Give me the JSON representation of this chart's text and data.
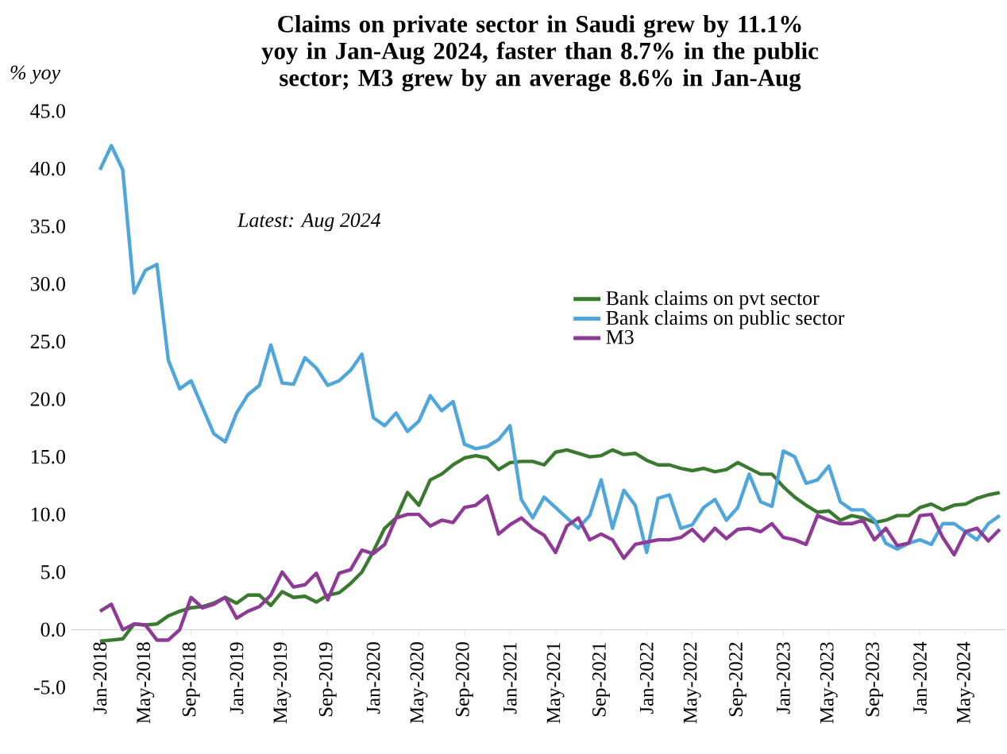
{
  "chart_data": {
    "type": "line",
    "title": "Claims on private sector in Saudi grew by 11.1% yoy in Jan-Aug 2024, faster than 8.7% in the public sector; M3 grew by an average 8.6% in Jan-Aug",
    "ylabel": "% yoy",
    "annotations": [
      "Latest: Aug 2024"
    ],
    "categories": [
      "Jan-2018",
      null,
      null,
      null,
      "May-2018",
      null,
      null,
      null,
      "Sep-2018",
      null,
      null,
      null,
      "Jan-2019",
      null,
      null,
      null,
      "May-2019",
      null,
      null,
      null,
      "Sep-2019",
      null,
      null,
      null,
      "Jan-2020",
      null,
      null,
      null,
      "May-2020",
      null,
      null,
      null,
      "Sep-2020",
      null,
      null,
      null,
      "Jan-2021",
      null,
      null,
      null,
      "May-2021",
      null,
      null,
      null,
      "Sep-2021",
      null,
      null,
      null,
      "Jan-2022",
      null,
      null,
      null,
      "May-2022",
      null,
      null,
      null,
      "Sep-2022",
      null,
      null,
      null,
      "Jan-2023",
      null,
      null,
      null,
      "May-2023",
      null,
      null,
      null,
      "Sep-2023",
      null,
      null,
      null,
      "Jan-2024",
      null,
      null,
      null,
      "May-2024",
      null,
      null,
      null
    ],
    "ylim": [
      -5,
      45
    ],
    "yticks": [
      {
        "value": -5,
        "label": "-5.0"
      },
      {
        "value": 0,
        "label": "0.0"
      },
      {
        "value": 5,
        "label": "5.0"
      },
      {
        "value": 10,
        "label": "10.0"
      },
      {
        "value": 15,
        "label": "15.0"
      },
      {
        "value": 20,
        "label": "20.0"
      },
      {
        "value": 25,
        "label": "25.0"
      },
      {
        "value": 30,
        "label": "30.0"
      },
      {
        "value": 35,
        "label": "35.0"
      },
      {
        "value": 40,
        "label": "40.0"
      },
      {
        "value": 45,
        "label": "45.0"
      }
    ],
    "legend": "right",
    "series": [
      {
        "name": "Bank claims on pvt sector",
        "color": "#3a7a2e",
        "values": [
          -1.0,
          -0.9,
          -0.8,
          0.5,
          0.4,
          0.5,
          1.2,
          1.6,
          1.9,
          2.0,
          2.3,
          2.8,
          2.3,
          3.0,
          3.0,
          2.1,
          3.3,
          2.8,
          2.9,
          2.4,
          3.0,
          3.2,
          4.0,
          5.0,
          6.8,
          8.8,
          9.7,
          11.9,
          10.8,
          13.0,
          13.5,
          14.3,
          14.9,
          15.1,
          14.9,
          13.9,
          14.5,
          14.6,
          14.6,
          14.3,
          15.4,
          15.6,
          15.3,
          15.0,
          15.1,
          15.6,
          15.2,
          15.3,
          14.7,
          14.3,
          14.3,
          14.0,
          13.8,
          14.0,
          13.7,
          13.9,
          14.5,
          14.0,
          13.5,
          13.5,
          12.4,
          11.5,
          10.8,
          10.2,
          10.3,
          9.5,
          9.9,
          9.7,
          9.3,
          9.5,
          9.9,
          9.9,
          10.6,
          10.9,
          10.4,
          10.8,
          10.9,
          11.4,
          11.7,
          11.9
        ]
      },
      {
        "name": "Bank claims on public sector",
        "color": "#4ea6dc",
        "values": [
          39.9,
          42.0,
          39.9,
          29.2,
          31.2,
          31.7,
          23.4,
          20.9,
          21.6,
          19.3,
          17.0,
          16.3,
          18.8,
          20.4,
          21.2,
          24.7,
          21.4,
          21.3,
          23.6,
          22.7,
          21.2,
          21.6,
          22.5,
          23.9,
          18.4,
          17.7,
          18.8,
          17.2,
          18.1,
          20.3,
          19.0,
          19.8,
          16.1,
          15.7,
          15.9,
          16.5,
          17.7,
          11.3,
          9.7,
          11.5,
          10.6,
          9.7,
          8.8,
          9.9,
          13.0,
          8.8,
          12.1,
          10.8,
          6.7,
          11.4,
          11.7,
          8.8,
          9.1,
          10.6,
          11.3,
          9.5,
          10.6,
          13.5,
          11.1,
          10.7,
          15.5,
          15.0,
          12.7,
          13.0,
          14.2,
          11.1,
          10.4,
          10.4,
          9.5,
          7.5,
          7.0,
          7.5,
          7.8,
          7.4,
          9.2,
          9.2,
          8.5,
          7.8,
          9.2,
          9.9
        ]
      },
      {
        "name": "M3",
        "color": "#8e3a96",
        "values": [
          1.6,
          2.2,
          0.0,
          0.5,
          0.4,
          -0.9,
          -0.9,
          0.0,
          2.8,
          1.9,
          2.2,
          2.8,
          1.0,
          1.6,
          2.0,
          3.0,
          5.0,
          3.7,
          3.9,
          4.9,
          2.6,
          4.9,
          5.2,
          6.9,
          6.6,
          7.4,
          9.7,
          10.0,
          10.0,
          9.0,
          9.5,
          9.3,
          10.6,
          10.8,
          11.6,
          8.3,
          9.1,
          9.7,
          8.8,
          8.2,
          6.7,
          9.0,
          9.7,
          7.8,
          8.3,
          7.8,
          6.2,
          7.4,
          7.6,
          7.8,
          7.8,
          8.0,
          8.7,
          7.7,
          8.8,
          7.9,
          8.7,
          8.8,
          8.5,
          9.2,
          8.0,
          7.8,
          7.4,
          9.9,
          9.5,
          9.2,
          9.2,
          9.5,
          7.8,
          8.8,
          7.3,
          7.5,
          9.9,
          10.0,
          8.0,
          6.5,
          8.5,
          8.8,
          7.7,
          8.7
        ]
      }
    ]
  }
}
